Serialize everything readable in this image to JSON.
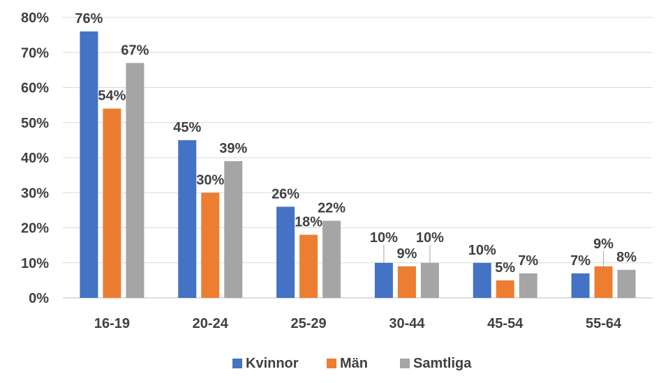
{
  "chart_data": {
    "type": "bar",
    "categories": [
      "16-19",
      "20-24",
      "25-29",
      "30-44",
      "45-54",
      "55-64"
    ],
    "series": [
      {
        "name": "Kvinnor",
        "color": "#4472C4",
        "values": [
          76,
          45,
          26,
          10,
          10,
          7
        ]
      },
      {
        "name": "Män",
        "color": "#ED7D31",
        "values": [
          54,
          30,
          18,
          9,
          5,
          9
        ]
      },
      {
        "name": "Samtliga",
        "color": "#A5A5A5",
        "values": [
          67,
          39,
          22,
          10,
          7,
          8
        ]
      }
    ],
    "data_labels": [
      [
        "76%",
        "45%",
        "26%",
        "10%",
        "10%",
        "7%"
      ],
      [
        "54%",
        "30%",
        "18%",
        "9%",
        "5%",
        "9%"
      ],
      [
        "67%",
        "39%",
        "22%",
        "10%",
        "7%",
        "8%"
      ]
    ],
    "ylim": [
      0,
      80
    ],
    "yticks": [
      0,
      10,
      20,
      30,
      40,
      50,
      60,
      70,
      80
    ],
    "ytick_labels": [
      "0%",
      "10%",
      "20%",
      "30%",
      "40%",
      "50%",
      "60%",
      "70%",
      "80%"
    ],
    "grid": true,
    "legend": "bottom",
    "title": "",
    "xlabel": "",
    "ylabel": ""
  }
}
